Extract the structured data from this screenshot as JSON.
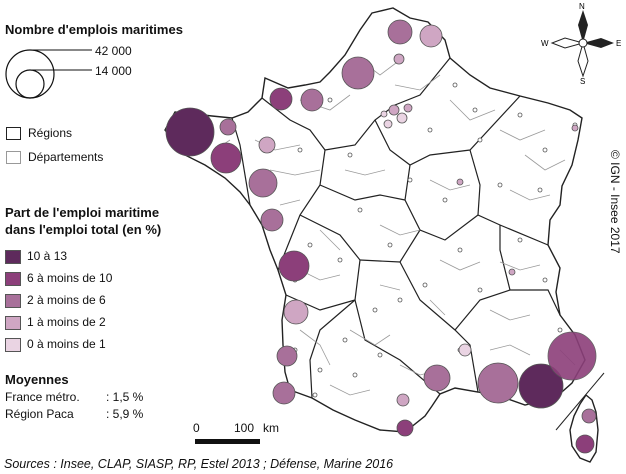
{
  "legend_size": {
    "title": "Nombre d'emplois maritimes",
    "big_label": "42 000",
    "small_label": "14 000"
  },
  "legend_boundaries": {
    "regions": "Régions",
    "departements": "Départements"
  },
  "legend_share": {
    "title_line1": "Part de l'emploi maritime",
    "title_line2": "dans l'emploi total (en %)",
    "classes": [
      {
        "label": "10 à 13",
        "color": "#5e2a5c"
      },
      {
        "label": "6 à moins de 10",
        "color": "#8c3f7a"
      },
      {
        "label": "2 à moins de 6",
        "color": "#a8709a"
      },
      {
        "label": "1 à moins de 2",
        "color": "#cfa6c3"
      },
      {
        "label": "0 à moins de 1",
        "color": "#ead4e3"
      }
    ]
  },
  "averages": {
    "title": "Moyennes",
    "france_label": "France métro.",
    "france_value": ": 1,5 %",
    "paca_label": "Région Paca",
    "paca_value": ": 5,9 %"
  },
  "scale": {
    "zero": "0",
    "hundred": "100",
    "unit": "km"
  },
  "compass": {
    "n": "N",
    "s": "S",
    "e": "E",
    "w": "W"
  },
  "copyright": "© IGN - Insee 2017",
  "sources": "Sources : Insee, CLAP, SIASP, RP, Estel 2013 ; Défense, Marine 2016",
  "colors": {
    "c1": "#5e2a5c",
    "c2": "#8c3f7a",
    "c3": "#a8709a",
    "c4": "#cfa6c3",
    "c5": "#ead4e3",
    "border": "#555555"
  }
}
